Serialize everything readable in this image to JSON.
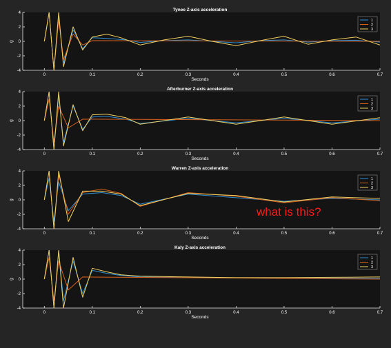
{
  "colors": {
    "figure_bg": "#252525",
    "axes_bg": "#141414",
    "axis": "#e6e6e6",
    "text": "#ffffff",
    "series": [
      "#2f8fd6",
      "#d9601c",
      "#f2d060"
    ]
  },
  "annotation": "what is this?",
  "chart_data": [
    {
      "type": "line",
      "title": "Tynee Z-axis acceleration",
      "xlabel": "Seconds",
      "ylabel": "g",
      "xlim": [
        -0.045,
        0.7
      ],
      "ylim": [
        -4,
        4
      ],
      "xticks": [
        0,
        0.1,
        0.2,
        0.3,
        0.4,
        0.5,
        0.6,
        0.7
      ],
      "yticks": [
        -4,
        -2,
        0,
        2,
        4
      ],
      "xtick_labels": [
        "0",
        "0.1",
        "0.2",
        "0.3",
        "0.4",
        "0.5",
        "0.6",
        "0.7"
      ],
      "ytick_labels": [
        "-4",
        "-2",
        "0",
        "2",
        "4"
      ],
      "legend": "top-right",
      "series": [
        {
          "name": "1",
          "x": [
            0,
            0.01,
            0.02,
            0.03,
            0.04,
            0.06,
            0.08,
            0.1,
            0.13,
            0.17,
            0.2,
            0.25,
            0.3,
            0.35,
            0.4,
            0.45,
            0.5,
            0.55,
            0.6,
            0.65,
            0.7
          ],
          "y": [
            0,
            4,
            -4,
            3.5,
            -3,
            1.6,
            -1.0,
            0.5,
            0.4,
            0.2,
            -0.15,
            0.1,
            0.2,
            0.0,
            -0.2,
            0.1,
            0.2,
            -0.1,
            0.1,
            0.15,
            -0.1
          ]
        },
        {
          "name": "2",
          "x": [
            0,
            0.01,
            0.02,
            0.03,
            0.04,
            0.06,
            0.08,
            0.1,
            0.7
          ],
          "y": [
            0,
            4,
            -4,
            3,
            -2.5,
            1.0,
            -0.5,
            0.1,
            0
          ]
        },
        {
          "name": "3",
          "x": [
            0,
            0.01,
            0.02,
            0.03,
            0.04,
            0.06,
            0.08,
            0.1,
            0.13,
            0.16,
            0.2,
            0.25,
            0.3,
            0.35,
            0.4,
            0.45,
            0.5,
            0.55,
            0.6,
            0.65,
            0.7
          ],
          "y": [
            0,
            4,
            -4,
            4,
            -3.5,
            2.0,
            -1.2,
            0.6,
            1.0,
            0.5,
            -0.5,
            0.2,
            0.7,
            0.0,
            -0.6,
            0.1,
            0.7,
            -0.4,
            0.2,
            0.6,
            -0.5
          ]
        }
      ]
    },
    {
      "type": "line",
      "title": "Afterburner Z-axis acceleration",
      "xlabel": "Seconds",
      "ylabel": "g",
      "xlim": [
        -0.045,
        0.7
      ],
      "ylim": [
        -4,
        4
      ],
      "xticks": [
        0,
        0.1,
        0.2,
        0.3,
        0.4,
        0.5,
        0.6,
        0.7
      ],
      "yticks": [
        -4,
        -2,
        0,
        2,
        4
      ],
      "xtick_labels": [
        "0",
        "0.1",
        "0.2",
        "0.3",
        "0.4",
        "0.5",
        "0.6",
        "0.7"
      ],
      "ytick_labels": [
        "-4",
        "-2",
        "0",
        "2",
        "4"
      ],
      "legend": "top-right",
      "series": [
        {
          "name": "1",
          "x": [
            0,
            0.01,
            0.02,
            0.03,
            0.04,
            0.06,
            0.08,
            0.1,
            0.13,
            0.17,
            0.2,
            0.3,
            0.4,
            0.5,
            0.6,
            0.7
          ],
          "y": [
            0,
            4,
            -4,
            3.5,
            -3,
            2.0,
            -1.2,
            0.5,
            0.6,
            0.2,
            -0.4,
            0.3,
            -0.3,
            0.3,
            -0.3,
            0.2
          ]
        },
        {
          "name": "2",
          "x": [
            0,
            0.01,
            0.02,
            0.03,
            0.05,
            0.08,
            0.7
          ],
          "y": [
            0,
            3,
            -3,
            2,
            -1.0,
            0.2,
            0
          ]
        },
        {
          "name": "3",
          "x": [
            0,
            0.01,
            0.02,
            0.03,
            0.04,
            0.06,
            0.08,
            0.1,
            0.13,
            0.17,
            0.2,
            0.3,
            0.4,
            0.5,
            0.6,
            0.7
          ],
          "y": [
            0,
            4,
            -4,
            4,
            -3.5,
            2.2,
            -1.4,
            0.8,
            0.9,
            0.4,
            -0.5,
            0.5,
            -0.5,
            0.5,
            -0.5,
            0.4
          ]
        }
      ]
    },
    {
      "type": "line",
      "title": "Warren Z-axis acceleration",
      "xlabel": "Seconds",
      "ylabel": "g",
      "xlim": [
        -0.045,
        0.7
      ],
      "ylim": [
        -4,
        4
      ],
      "xticks": [
        0,
        0.1,
        0.2,
        0.3,
        0.4,
        0.5,
        0.6,
        0.7
      ],
      "yticks": [
        -4,
        -2,
        0,
        2,
        4
      ],
      "xtick_labels": [
        "0",
        "0.1",
        "0.2",
        "0.3",
        "0.4",
        "0.5",
        "0.6",
        "0.7"
      ],
      "ytick_labels": [
        "-4",
        "-2",
        "0",
        "2",
        "4"
      ],
      "legend": "top-right",
      "series": [
        {
          "name": "1",
          "x": [
            0,
            0.01,
            0.02,
            0.03,
            0.05,
            0.08,
            0.12,
            0.16,
            0.2,
            0.3,
            0.4,
            0.5,
            0.6,
            0.7
          ],
          "y": [
            0,
            3,
            -3,
            2.5,
            -1.5,
            0.8,
            1.0,
            0.6,
            -0.6,
            0.8,
            0.3,
            -0.2,
            0.2,
            0.0
          ]
        },
        {
          "name": "2",
          "x": [
            0,
            0.01,
            0.02,
            0.03,
            0.05,
            0.08,
            0.12,
            0.16,
            0.2,
            0.3,
            0.4,
            0.5,
            0.6,
            0.7
          ],
          "y": [
            0,
            4,
            -4,
            3.5,
            -2.0,
            1.0,
            1.5,
            0.9,
            -0.9,
            1.0,
            0.5,
            -0.4,
            0.3,
            -0.1
          ]
        },
        {
          "name": "3",
          "x": [
            0,
            0.01,
            0.02,
            0.03,
            0.05,
            0.08,
            0.12,
            0.16,
            0.2,
            0.3,
            0.4,
            0.5,
            0.6,
            0.7
          ],
          "y": [
            0,
            4,
            -4,
            4,
            -3.0,
            1.2,
            1.2,
            0.8,
            -0.8,
            0.9,
            0.6,
            -0.3,
            0.4,
            0.2
          ]
        }
      ]
    },
    {
      "type": "line",
      "title": "Kaly Z-axis acceleration",
      "xlabel": "Seconds",
      "ylabel": "g",
      "xlim": [
        -0.045,
        0.7
      ],
      "ylim": [
        -4,
        4
      ],
      "xticks": [
        0,
        0.1,
        0.2,
        0.3,
        0.4,
        0.5,
        0.6,
        0.7
      ],
      "yticks": [
        -4,
        -2,
        0,
        2,
        4
      ],
      "xtick_labels": [
        "0",
        "0.1",
        "0.2",
        "0.3",
        "0.4",
        "0.5",
        "0.6",
        "0.7"
      ],
      "ytick_labels": [
        "-4",
        "-2",
        "0",
        "2",
        "4"
      ],
      "legend": "top-right",
      "series": [
        {
          "name": "1",
          "x": [
            0,
            0.01,
            0.02,
            0.03,
            0.04,
            0.06,
            0.08,
            0.1,
            0.13,
            0.16,
            0.2,
            0.3,
            0.4,
            0.5,
            0.6,
            0.7
          ],
          "y": [
            0,
            4,
            -4,
            4,
            -3,
            2.5,
            -2.0,
            1.2,
            0.8,
            0.5,
            0.3,
            0.2,
            0.15,
            0.1,
            0.1,
            0.1
          ]
        },
        {
          "name": "2",
          "x": [
            0,
            0.01,
            0.02,
            0.03,
            0.05,
            0.08,
            0.7
          ],
          "y": [
            0,
            3,
            -3,
            2.5,
            -1.5,
            0.3,
            0
          ]
        },
        {
          "name": "3",
          "x": [
            0,
            0.01,
            0.02,
            0.03,
            0.04,
            0.06,
            0.08,
            0.1,
            0.13,
            0.16,
            0.2,
            0.3,
            0.4,
            0.5,
            0.6,
            0.7
          ],
          "y": [
            0,
            4,
            -4,
            4,
            -4,
            3.0,
            -2.5,
            1.5,
            1.0,
            0.6,
            0.4,
            0.3,
            0.2,
            0.2,
            0.25,
            0.3
          ]
        }
      ]
    }
  ]
}
